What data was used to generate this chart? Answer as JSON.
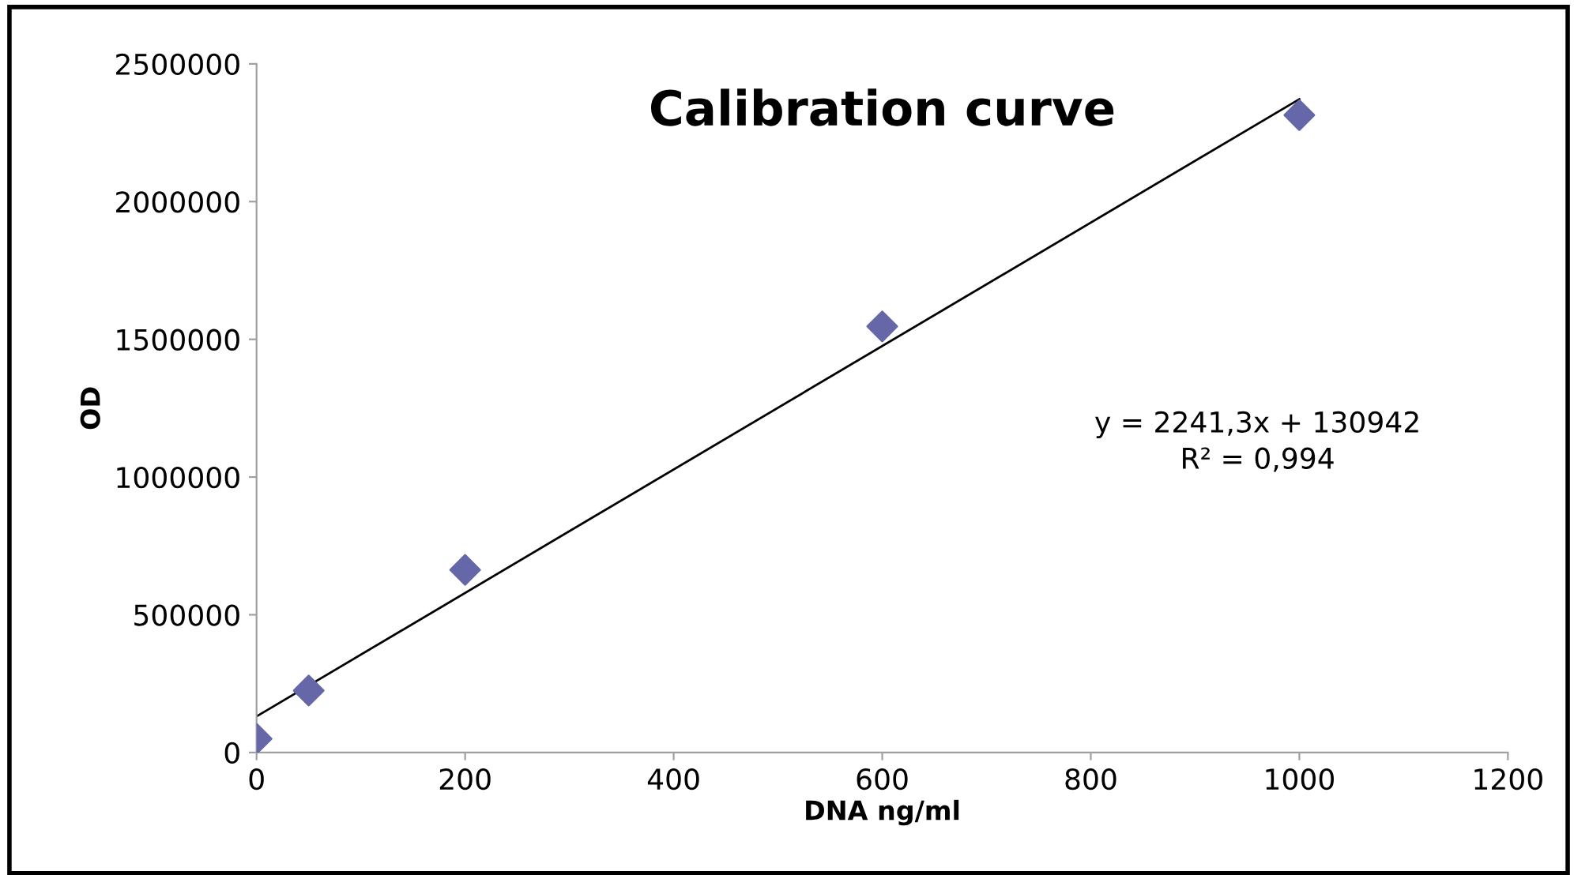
{
  "chart_data": {
    "type": "scatter",
    "title": "Calibration curve",
    "xlabel": "DNA ng/ml",
    "ylabel": "OD",
    "series": [
      {
        "color": "#6667a8",
        "marker": "diamond",
        "x": [
          0,
          50,
          200,
          600,
          1000
        ],
        "values": [
          50000,
          225000,
          663000,
          1547000,
          2314000
        ]
      },
      {
        "type": "line",
        "color": "#000000",
        "marker": "none",
        "line_style": "solid",
        "x": [
          0,
          1000
        ],
        "values": [
          131000,
          2372000
        ]
      }
    ],
    "annotations": [
      "y = 2241,3x + 130942",
      "R² = 0,994"
    ],
    "xlim": [
      0,
      1200
    ],
    "xticks": [
      0,
      200,
      400,
      600,
      800,
      1000,
      1200
    ],
    "ylim": [
      0,
      2500000
    ],
    "yticks": [
      0,
      500000,
      1000000,
      1500000,
      2000000,
      2500000
    ],
    "grid": false,
    "legend": false
  }
}
